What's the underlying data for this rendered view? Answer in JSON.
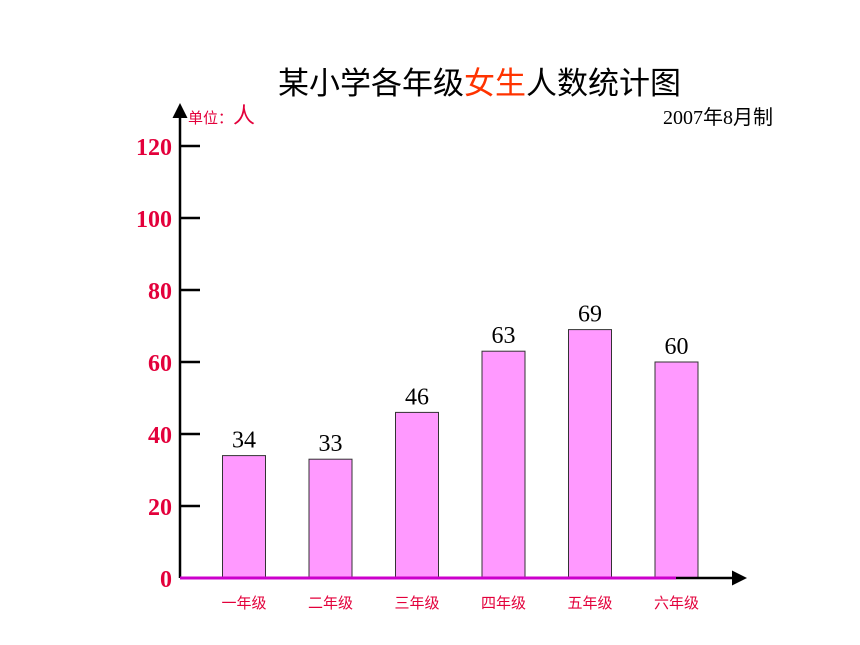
{
  "chart_data": {
    "type": "bar",
    "title_parts": [
      "某小学各年级",
      "女生",
      "人数统计图"
    ],
    "unit_label": "单位：",
    "unit_value": "人",
    "date_note": "2007年8月制",
    "categories": [
      "一年级",
      "二年级",
      "三年级",
      "四年级",
      "五年级",
      "六年级"
    ],
    "values": [
      34,
      33,
      46,
      63,
      69,
      60
    ],
    "ylim": [
      0,
      120
    ],
    "yticks": [
      0,
      20,
      40,
      60,
      80,
      100,
      120
    ],
    "grid": false,
    "colors": {
      "bar_fill": "#ff99ff",
      "bar_stroke": "#333333",
      "baseline": "#cc00cc",
      "axis_tick_labels": "#e3003b",
      "category_labels": "#e3003b",
      "title_highlight": "#ff3300"
    }
  }
}
